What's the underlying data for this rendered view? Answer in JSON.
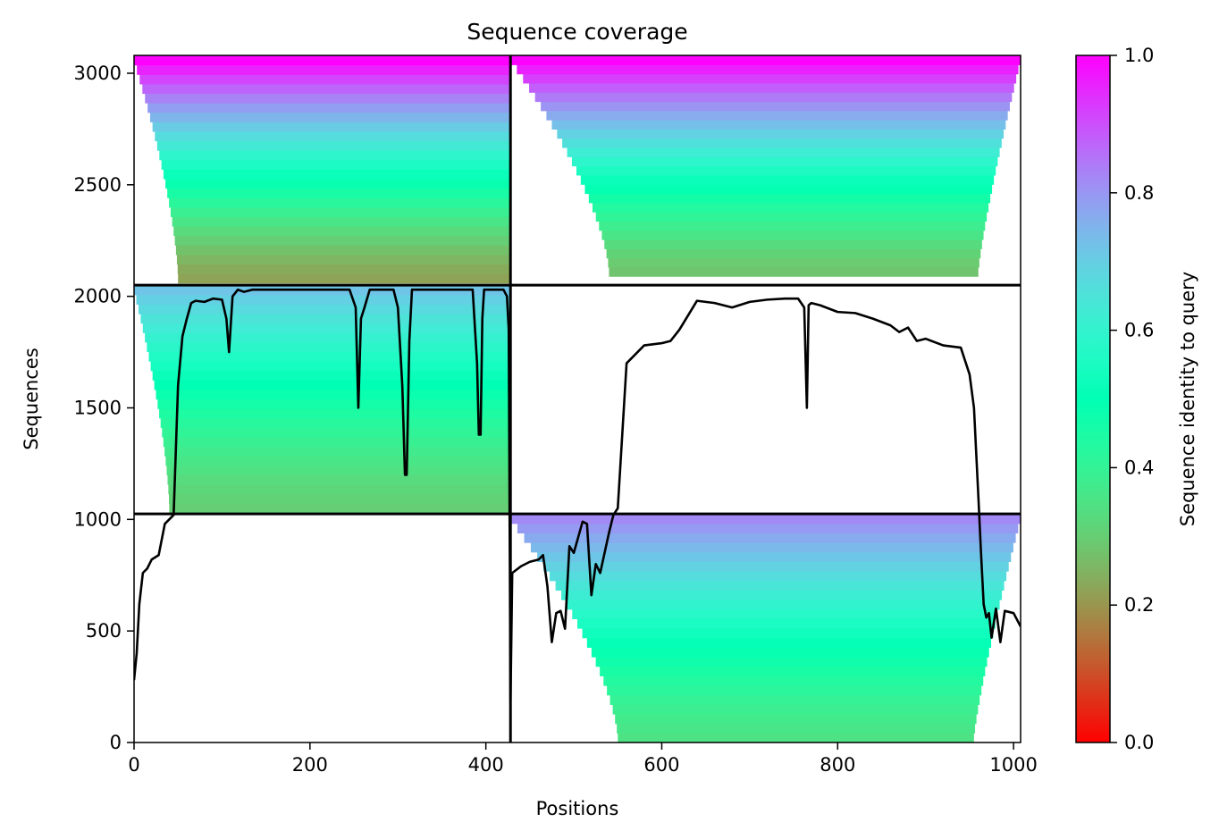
{
  "chart_data": {
    "type": "heatmap",
    "title": "Sequence coverage",
    "xlabel": "Positions",
    "ylabel": "Sequences",
    "colorbar_label": "Sequence identity to query",
    "colormap": "rainbow_r",
    "xlim": [
      0,
      1008
    ],
    "ylim": [
      0,
      3080
    ],
    "clim": [
      0,
      1
    ],
    "xticks": [
      0,
      200,
      400,
      600,
      800,
      1000
    ],
    "yticks": [
      0,
      500,
      1000,
      1500,
      2000,
      2500,
      3000
    ],
    "cticks": [
      0.0,
      0.2,
      0.4,
      0.6,
      0.8,
      1.0
    ],
    "xtick_labels": [
      "0",
      "200",
      "400",
      "600",
      "800",
      "1000"
    ],
    "ytick_labels": [
      "0",
      "500",
      "1000",
      "1500",
      "2000",
      "2500",
      "3000"
    ],
    "ctick_labels": [
      "0.0",
      "0.2",
      "0.4",
      "0.6",
      "0.8",
      "1.0"
    ],
    "chain_boundary_x": 428,
    "block_boundaries_y": [
      1025,
      2050
    ],
    "blocks": [
      {
        "name": "block-top-left",
        "x0": 0,
        "x1": 428,
        "y0": 2050,
        "y1": 3080,
        "core_x0": 50,
        "core_x1": 428,
        "core_y0": 2060,
        "id_bottom": 0.22,
        "id_top": 1.0
      },
      {
        "name": "block-top-right",
        "x0": 428,
        "x1": 1008,
        "y0": 2050,
        "y1": 3080,
        "core_x0": 540,
        "core_x1": 960,
        "core_y0": 2090,
        "id_bottom": 0.28,
        "id_top": 1.0
      },
      {
        "name": "block-middle-left",
        "x0": 0,
        "x1": 428,
        "y0": 1025,
        "y1": 2050,
        "core_x0": 40,
        "core_x1": 428,
        "core_y0": 1030,
        "id_bottom": 0.3,
        "id_top": 0.72
      },
      {
        "name": "block-bottom-right",
        "x0": 428,
        "x1": 1008,
        "y0": 0,
        "y1": 1025,
        "core_x0": 550,
        "core_x1": 955,
        "core_y0": 0,
        "id_bottom": 0.35,
        "id_top": 0.82
      }
    ],
    "coverage_line": {
      "x": [
        0,
        3,
        6,
        10,
        15,
        20,
        28,
        35,
        40,
        45,
        50,
        55,
        60,
        65,
        70,
        80,
        90,
        100,
        105,
        108,
        112,
        118,
        125,
        135,
        150,
        180,
        200,
        230,
        245,
        252,
        255,
        258,
        262,
        268,
        275,
        285,
        295,
        300,
        305,
        308,
        310,
        313,
        316,
        322,
        335,
        350,
        370,
        385,
        390,
        392,
        394,
        396,
        398,
        402,
        410,
        420,
        424,
        426,
        428,
        430,
        440,
        450,
        460,
        465,
        470,
        475,
        480,
        485,
        490,
        495,
        500,
        505,
        510,
        515,
        520,
        525,
        530,
        535,
        540,
        545,
        550,
        560,
        580,
        600,
        610,
        620,
        640,
        660,
        680,
        700,
        720,
        740,
        755,
        762,
        765,
        767,
        770,
        780,
        800,
        820,
        840,
        860,
        870,
        880,
        890,
        900,
        920,
        940,
        950,
        955,
        960,
        963,
        966,
        969,
        972,
        975,
        980,
        985,
        990,
        1000,
        1008
      ],
      "y": [
        280,
        400,
        620,
        760,
        780,
        820,
        840,
        980,
        1000,
        1020,
        1600,
        1820,
        1900,
        1970,
        1980,
        1975,
        1990,
        1985,
        1900,
        1750,
        2000,
        2030,
        2020,
        2030,
        2030,
        2030,
        2030,
        2030,
        2030,
        1950,
        1500,
        1900,
        1950,
        2030,
        2030,
        2030,
        2030,
        1950,
        1600,
        1200,
        1200,
        1800,
        2030,
        2030,
        2030,
        2030,
        2030,
        2030,
        1700,
        1380,
        1380,
        1900,
        2030,
        2030,
        2030,
        2030,
        2000,
        1850,
        180,
        760,
        790,
        810,
        820,
        840,
        700,
        450,
        580,
        590,
        510,
        880,
        850,
        920,
        990,
        980,
        660,
        800,
        760,
        850,
        940,
        1020,
        1050,
        1700,
        1780,
        1790,
        1800,
        1850,
        1980,
        1970,
        1950,
        1975,
        1985,
        1990,
        1990,
        1950,
        1500,
        1960,
        1970,
        1960,
        1930,
        1925,
        1900,
        1870,
        1840,
        1860,
        1800,
        1810,
        1780,
        1770,
        1650,
        1500,
        1100,
        850,
        620,
        560,
        580,
        470,
        600,
        450,
        590,
        580,
        520
      ]
    }
  }
}
